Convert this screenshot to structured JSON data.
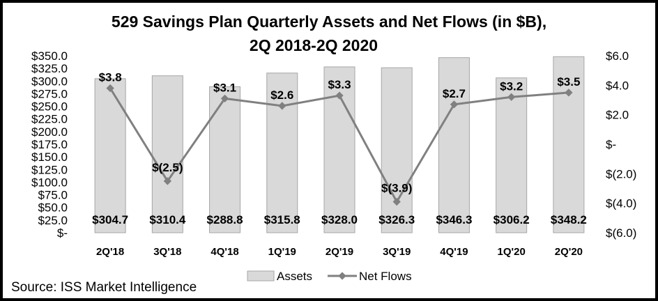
{
  "chart_data": {
    "type": "bar+line",
    "title_line1": "529 Savings Plan Quarterly Assets and Net Flows (in $B),",
    "title_line2": "2Q 2018-2Q 2020",
    "categories": [
      "2Q'18",
      "3Q'18",
      "4Q'18",
      "1Q'19",
      "2Q'19",
      "3Q'19",
      "4Q'19",
      "1Q'20",
      "2Q'20"
    ],
    "series": [
      {
        "name": "Assets",
        "type": "bar",
        "axis": "left",
        "values": [
          304.7,
          310.4,
          288.8,
          315.8,
          328.0,
          326.3,
          346.3,
          306.2,
          348.2
        ],
        "labels": [
          "$304.7",
          "$310.4",
          "$288.8",
          "$315.8",
          "$328.0",
          "$326.3",
          "$346.3",
          "$306.2",
          "$348.2"
        ],
        "color": "#d9d9d9"
      },
      {
        "name": "Net Flows",
        "type": "line",
        "axis": "right",
        "values": [
          3.8,
          -2.5,
          3.1,
          2.6,
          3.3,
          -3.9,
          2.7,
          3.2,
          3.5
        ],
        "labels": [
          "$3.8",
          "$(2.5)",
          "$3.1",
          "$2.6",
          "$3.3",
          "$(3.9)",
          "$2.7",
          "$3.2",
          "$3.5"
        ],
        "color": "#808080"
      }
    ],
    "left_axis": {
      "min": 0,
      "max": 350,
      "step": 25,
      "tick_labels": [
        "$-",
        "$25.0",
        "$50.0",
        "$75.0",
        "$100.0",
        "$125.0",
        "$150.0",
        "$175.0",
        "$200.0",
        "$225.0",
        "$250.0",
        "$275.0",
        "$300.0",
        "$325.0",
        "$350.0"
      ]
    },
    "right_axis": {
      "min": -6,
      "max": 6,
      "step": 2,
      "tick_labels": [
        "$(6.0)",
        "$(4.0)",
        "$(2.0)",
        "$-",
        "$2.0",
        "$4.0",
        "$6.0"
      ]
    },
    "grid": false,
    "legend_position": "bottom"
  },
  "source": "Source: ISS Market Intelligence"
}
